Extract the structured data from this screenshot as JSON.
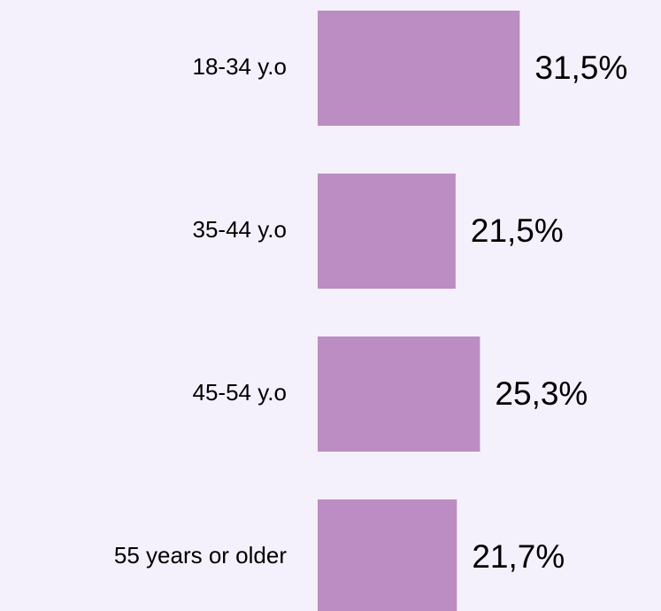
{
  "chart_data": {
    "type": "bar",
    "orientation": "horizontal",
    "categories": [
      "18-34 y.o",
      "35-44 y.o",
      "45-54 y.o",
      "55 years or older"
    ],
    "values": [
      31.5,
      21.5,
      25.3,
      21.7
    ],
    "value_labels": [
      "31,5%",
      "21,5%",
      "25,3%",
      "21,7%"
    ],
    "color": "#bc8dc3"
  }
}
